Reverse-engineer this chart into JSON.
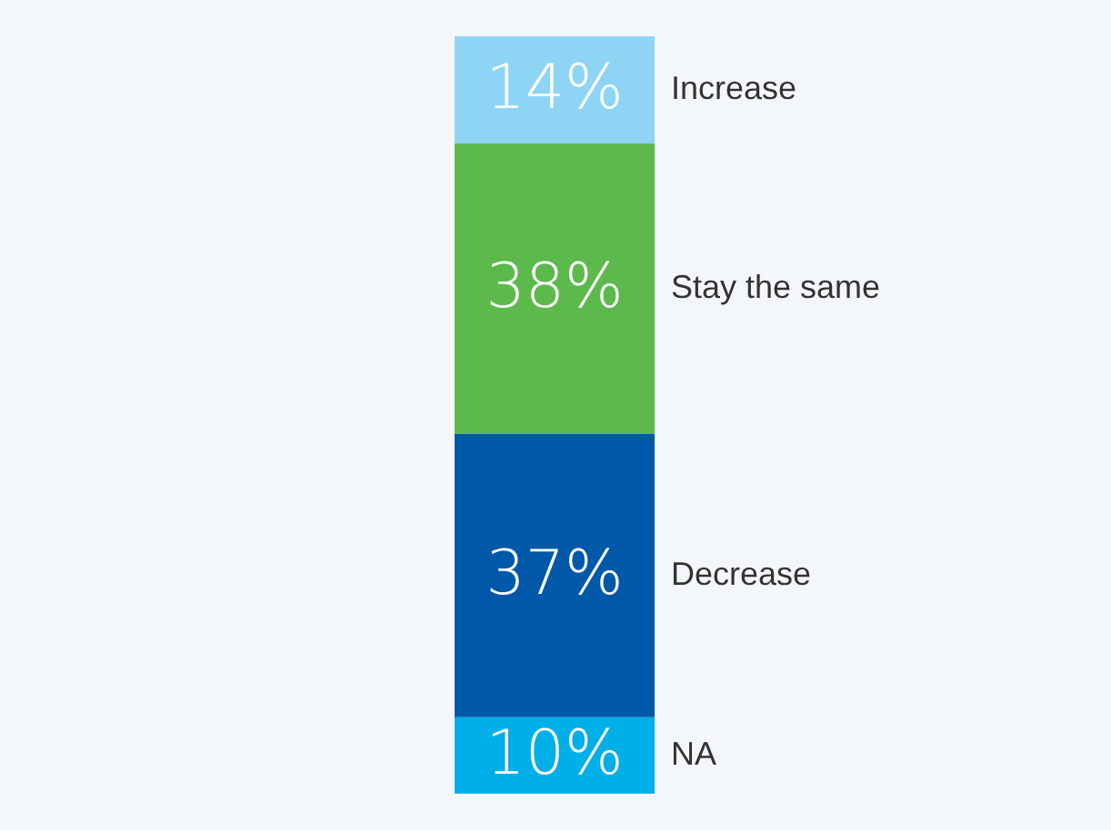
{
  "chart_data": {
    "type": "bar",
    "stacked": true,
    "categories": [
      null
    ],
    "legend": false,
    "series": [
      {
        "name": "NA",
        "color": "#00aee8",
        "values": [
          10
        ],
        "value_labels": [
          "10%"
        ]
      },
      {
        "name": "Decrease",
        "color": "#0058a9",
        "values": [
          37
        ],
        "value_labels": [
          "37%"
        ]
      },
      {
        "name": "Stay the same",
        "color": "#5cb94c",
        "values": [
          38
        ],
        "value_labels": [
          "38%"
        ]
      },
      {
        "name": "Increase",
        "color": "#8ed4f5",
        "values": [
          14
        ],
        "value_labels": [
          "14%"
        ]
      }
    ]
  }
}
